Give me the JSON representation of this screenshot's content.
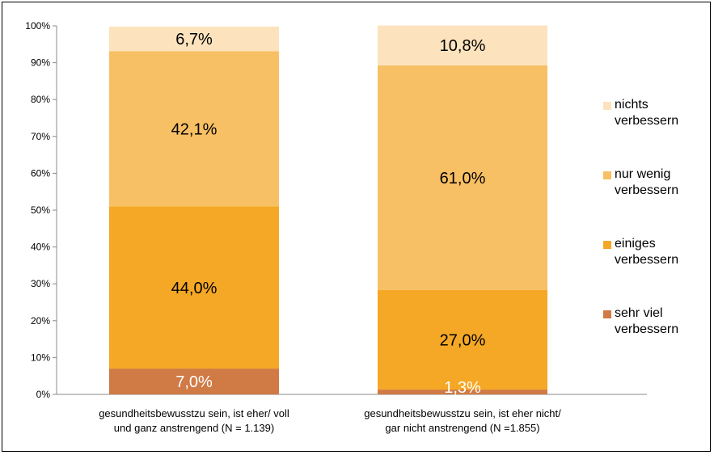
{
  "chart_data": {
    "type": "bar",
    "stacked": true,
    "normalized": true,
    "categories": [
      [
        "gesundheitsbewusstzu sein, ist eher/ voll",
        "und ganz anstrengend (N = 1.139)"
      ],
      [
        "gesundheitsbewusstzu sein, ist eher nicht/",
        "gar nicht anstrengend (N =1.855)"
      ]
    ],
    "series": [
      {
        "name": "sehr viel verbessern",
        "values": [
          7.0,
          1.3
        ],
        "labels": [
          "7,0%",
          "1,3%"
        ],
        "color": "#D07A45",
        "label_color": "#ffffff"
      },
      {
        "name": "einiges verbessern",
        "values": [
          44.0,
          27.0
        ],
        "labels": [
          "44,0%",
          "27,0%"
        ],
        "color": "#F5A825",
        "label_color": "#000000"
      },
      {
        "name": "nur wenig verbessern",
        "values": [
          42.1,
          61.0
        ],
        "labels": [
          "42,1%",
          "61,0%"
        ],
        "color": "#F8C064",
        "label_color": "#000000"
      },
      {
        "name": "nichts verbessern",
        "values": [
          6.7,
          10.8
        ],
        "labels": [
          "6,7%",
          "10,8%"
        ],
        "color": "#FCE3BE",
        "label_color": "#000000"
      }
    ],
    "y_ticks": [
      "0%",
      "10%",
      "20%",
      "30%",
      "40%",
      "50%",
      "60%",
      "70%",
      "80%",
      "90%",
      "100%"
    ],
    "ylim": [
      0,
      100
    ],
    "grid": false,
    "legend_position": "right",
    "legend_order": [
      "nichts verbessern",
      "nur wenig verbessern",
      "einiges verbessern",
      "sehr viel verbessern"
    ]
  }
}
